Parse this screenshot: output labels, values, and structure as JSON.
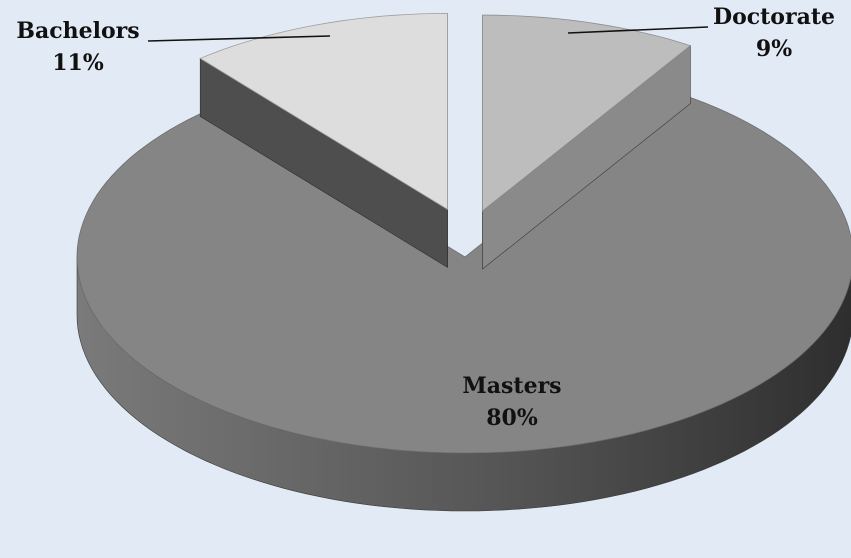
{
  "chart_data": {
    "type": "pie",
    "title": "",
    "three_d": true,
    "labels": [
      "Masters",
      "Doctorate",
      "Bachelors"
    ],
    "values": [
      80,
      9,
      11
    ],
    "value_labels": [
      "80%",
      "9%",
      "11%"
    ],
    "exploded": [
      "Doctorate",
      "Bachelors"
    ],
    "colors": {
      "Masters": "#858585",
      "Doctorate": "#bdbdbd",
      "Bachelors": "#dddddd",
      "background": "#e2ebf5"
    },
    "legend": "none"
  }
}
